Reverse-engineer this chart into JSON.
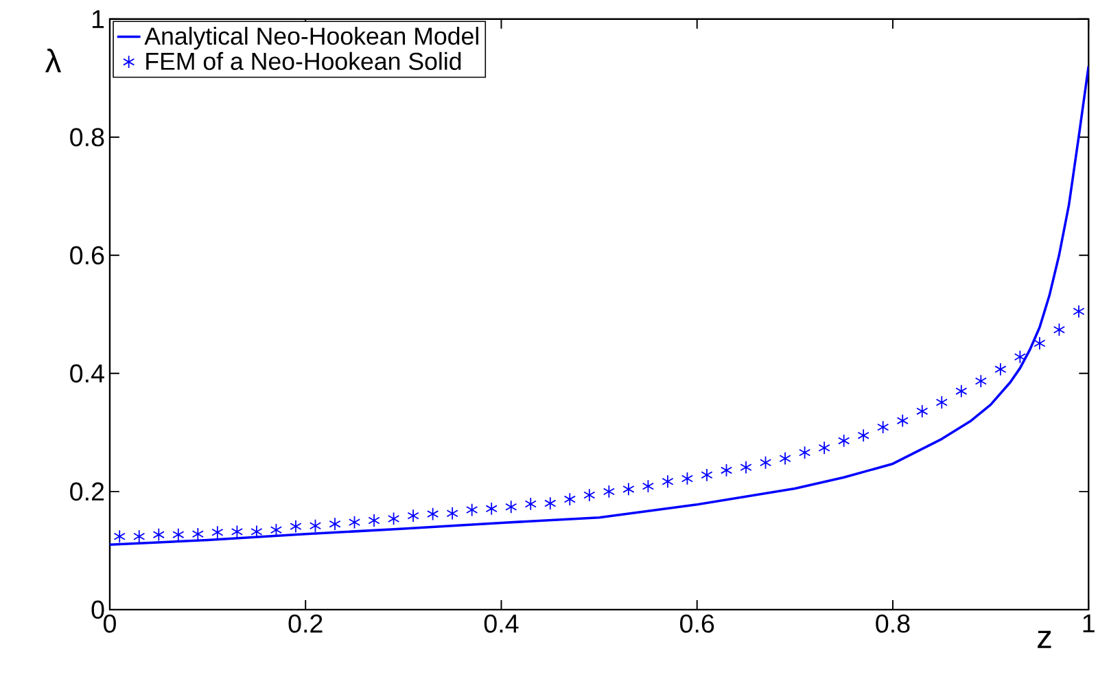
{
  "chart_data": {
    "type": "line",
    "xlabel": "z",
    "ylabel": "λ",
    "xlim": [
      0,
      1
    ],
    "ylim": [
      0,
      1
    ],
    "xticks": [
      0,
      0.2,
      0.4,
      0.6,
      0.8,
      1
    ],
    "yticks": [
      0,
      0.2,
      0.4,
      0.6,
      0.8,
      1
    ],
    "grid": false,
    "legend": "top left",
    "series": [
      {
        "name": "Analytical Neo-Hookean Model",
        "type": "line",
        "color": "#0000ff",
        "marker": "none",
        "line_style": "solid",
        "x": [
          0,
          0.1,
          0.2,
          0.3,
          0.4,
          0.5,
          0.6,
          0.7,
          0.75,
          0.8,
          0.85,
          0.88,
          0.9,
          0.92,
          0.93,
          0.94,
          0.95,
          0.96,
          0.97,
          0.98,
          0.99,
          1.0
        ],
        "values": [
          0.11,
          0.118,
          0.128,
          0.137,
          0.147,
          0.156,
          0.178,
          0.205,
          0.224,
          0.247,
          0.289,
          0.32,
          0.347,
          0.385,
          0.409,
          0.44,
          0.478,
          0.532,
          0.601,
          0.686,
          0.801,
          0.92
        ]
      },
      {
        "name": "FEM of a Neo-Hookean Solid",
        "type": "scatter",
        "color": "#0000ff",
        "marker": "cross",
        "x": [
          0.01,
          0.03,
          0.05,
          0.07,
          0.09,
          0.11,
          0.13,
          0.15,
          0.17,
          0.19,
          0.21,
          0.23,
          0.25,
          0.27,
          0.29,
          0.31,
          0.33,
          0.35,
          0.37,
          0.39,
          0.41,
          0.43,
          0.45,
          0.47,
          0.49,
          0.51,
          0.53,
          0.55,
          0.57,
          0.59,
          0.61,
          0.63,
          0.65,
          0.67,
          0.69,
          0.71,
          0.73,
          0.75,
          0.77,
          0.79,
          0.81,
          0.83,
          0.85,
          0.87,
          0.89,
          0.91,
          0.93,
          0.95,
          0.97,
          0.99
        ],
        "values": [
          0.124,
          0.124,
          0.127,
          0.127,
          0.128,
          0.131,
          0.132,
          0.132,
          0.135,
          0.141,
          0.142,
          0.145,
          0.148,
          0.151,
          0.154,
          0.159,
          0.162,
          0.163,
          0.169,
          0.171,
          0.174,
          0.179,
          0.18,
          0.187,
          0.194,
          0.2,
          0.204,
          0.209,
          0.217,
          0.222,
          0.228,
          0.236,
          0.241,
          0.249,
          0.256,
          0.266,
          0.274,
          0.286,
          0.295,
          0.309,
          0.32,
          0.336,
          0.351,
          0.37,
          0.387,
          0.407,
          0.428,
          0.451,
          0.474,
          0.505
        ]
      }
    ]
  }
}
